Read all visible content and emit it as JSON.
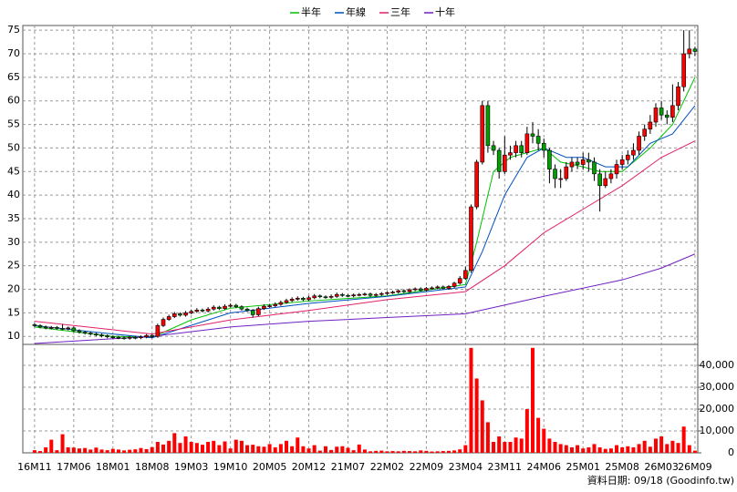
{
  "chart_data": {
    "type": "candlestick",
    "grid": true,
    "legend": "top",
    "up_color": "#ff0000",
    "down_color": "#00a000",
    "xlim": [
      -2.1,
      118.5
    ],
    "xticks": [
      {
        "value": 0,
        "label": "16M11"
      },
      {
        "value": 7,
        "label": "17M06"
      },
      {
        "value": 14,
        "label": "18M01"
      },
      {
        "value": 21,
        "label": "18M08"
      },
      {
        "value": 28,
        "label": "19M03"
      },
      {
        "value": 35,
        "label": "19M10"
      },
      {
        "value": 42,
        "label": "20M05"
      },
      {
        "value": 49,
        "label": "20M12"
      },
      {
        "value": 56,
        "label": "21M07"
      },
      {
        "value": 63,
        "label": "22M02"
      },
      {
        "value": 70,
        "label": "22M09"
      },
      {
        "value": 77,
        "label": "23M04"
      },
      {
        "value": 84,
        "label": "23M11"
      },
      {
        "value": 91,
        "label": "24M06"
      },
      {
        "value": 98,
        "label": "25M01"
      },
      {
        "value": 105,
        "label": "25M08"
      },
      {
        "value": 112,
        "label": "26M03"
      },
      {
        "value": 118,
        "label": "26M09"
      }
    ],
    "ylim": [
      8.3,
      76
    ],
    "yticks": [
      10,
      15,
      20,
      25,
      30,
      35,
      40,
      45,
      50,
      55,
      60,
      65,
      70,
      75
    ],
    "open": [
      12.5,
      12.3,
      12.0,
      11.8,
      11.9,
      11.7,
      11.6,
      11.8,
      11.2,
      10.9,
      10.7,
      10.5,
      10.3,
      10.1,
      9.9,
      9.8,
      9.7,
      9.6,
      9.8,
      9.7,
      9.9,
      10.2,
      10.0,
      12.3,
      13.6,
      14.2,
      14.8,
      14.5,
      15.0,
      15.3,
      15.6,
      15.4,
      15.8,
      16.2,
      15.9,
      16.4,
      16.6,
      16.3,
      15.8,
      15.5,
      14.6,
      15.9,
      16.4,
      16.5,
      16.8,
      17.2,
      17.6,
      17.9,
      18.1,
      17.8,
      18.2,
      18.6,
      18.4,
      18.3,
      18.5,
      18.9,
      18.7,
      18.6,
      18.8,
      18.9,
      19.0,
      18.7,
      18.9,
      19.1,
      19.3,
      19.4,
      19.7,
      19.5,
      19.9,
      20.1,
      19.8,
      20.2,
      20.3,
      20.5,
      20.2,
      20.6,
      21.3,
      22.3,
      24.0,
      37.5,
      47.0,
      59.0,
      50.5,
      49.5,
      45.0,
      48.5,
      49.0,
      50.5,
      49.0,
      53.0,
      52.5,
      51.0,
      49.5,
      45.5,
      43.5,
      43.5,
      46.0,
      47.0,
      46.5,
      47.5,
      47.0,
      44.5,
      42.0,
      43.5,
      44.5,
      46.5,
      47.5,
      48.5,
      49.5,
      52.5,
      54.0,
      55.5,
      58.5,
      57.0,
      56.5,
      59.0,
      63.0,
      70.0,
      71.0
    ],
    "high": [
      12.8,
      12.6,
      12.3,
      12.2,
      12.2,
      12.6,
      12.1,
      12.1,
      11.5,
      11.2,
      11.0,
      10.8,
      10.6,
      10.4,
      10.2,
      10.1,
      10.0,
      10.1,
      10.1,
      10.2,
      10.5,
      10.5,
      12.7,
      14.0,
      14.6,
      15.2,
      15.1,
      15.4,
      15.7,
      16.0,
      15.9,
      16.2,
      16.6,
      16.5,
      16.8,
      17.0,
      16.9,
      16.6,
      16.1,
      15.8,
      16.3,
      16.8,
      16.9,
      17.2,
      17.6,
      18.0,
      18.3,
      18.5,
      18.4,
      18.6,
      19.0,
      18.9,
      18.7,
      18.9,
      19.3,
      19.2,
      19.0,
      19.1,
      19.2,
      19.3,
      19.3,
      19.2,
      19.4,
      19.6,
      19.7,
      20.0,
      20.0,
      20.2,
      20.4,
      20.4,
      20.5,
      20.6,
      20.8,
      20.8,
      20.9,
      21.6,
      22.8,
      24.8,
      38.0,
      47.5,
      60.0,
      60.0,
      51.5,
      50.0,
      52.5,
      50.5,
      51.5,
      51.5,
      54.5,
      55.5,
      54.0,
      52.0,
      50.0,
      46.5,
      45.5,
      47.0,
      48.0,
      48.0,
      49.0,
      49.0,
      48.0,
      45.5,
      45.0,
      45.5,
      47.5,
      48.5,
      49.5,
      51.0,
      53.5,
      55.0,
      57.0,
      59.5,
      60.0,
      58.0,
      63.5,
      64.0,
      75.0,
      75.0,
      71.5
    ],
    "low": [
      12.0,
      11.7,
      11.5,
      11.5,
      11.4,
      11.3,
      11.3,
      10.9,
      10.6,
      10.4,
      10.2,
      10.0,
      9.8,
      9.6,
      9.5,
      9.4,
      9.3,
      9.3,
      9.4,
      9.4,
      9.6,
      9.6,
      9.7,
      12.0,
      13.3,
      13.9,
      14.2,
      14.2,
      14.7,
      15.0,
      15.1,
      15.1,
      15.5,
      15.6,
      15.6,
      16.1,
      16.0,
      15.5,
      15.2,
      14.0,
      14.3,
      15.6,
      16.1,
      16.2,
      16.5,
      16.9,
      17.3,
      17.6,
      17.5,
      17.5,
      17.9,
      18.1,
      18.0,
      18.0,
      18.2,
      18.4,
      18.3,
      18.3,
      18.5,
      18.6,
      18.4,
      18.4,
      18.6,
      18.8,
      19.0,
      19.1,
      19.2,
      19.2,
      19.6,
      19.5,
      19.5,
      19.9,
      20.0,
      19.9,
      19.9,
      20.3,
      21.0,
      22.0,
      23.5,
      37.0,
      46.5,
      49.0,
      48.5,
      43.5,
      44.5,
      47.5,
      48.0,
      48.0,
      48.5,
      51.0,
      49.5,
      48.0,
      42.5,
      41.5,
      41.5,
      43.0,
      45.0,
      45.5,
      45.5,
      45.0,
      43.0,
      36.5,
      41.5,
      42.5,
      43.5,
      45.5,
      46.5,
      47.5,
      48.5,
      51.5,
      53.0,
      54.5,
      56.0,
      55.0,
      55.5,
      58.0,
      62.0,
      69.0,
      69.5
    ],
    "close": [
      12.3,
      12.0,
      11.8,
      11.9,
      11.7,
      11.6,
      11.8,
      11.2,
      10.9,
      10.7,
      10.5,
      10.3,
      10.1,
      9.9,
      9.8,
      9.7,
      9.6,
      9.8,
      9.7,
      9.9,
      10.2,
      10.0,
      12.3,
      13.6,
      14.2,
      14.8,
      14.5,
      15.0,
      15.3,
      15.6,
      15.4,
      15.8,
      16.2,
      15.9,
      16.4,
      16.6,
      16.3,
      15.8,
      15.5,
      14.6,
      15.9,
      16.4,
      16.5,
      16.8,
      17.2,
      17.6,
      17.9,
      18.1,
      17.8,
      18.2,
      18.6,
      18.4,
      18.3,
      18.5,
      18.9,
      18.7,
      18.6,
      18.8,
      18.9,
      19.0,
      18.7,
      18.9,
      19.1,
      19.3,
      19.4,
      19.7,
      19.5,
      19.9,
      20.1,
      19.8,
      20.2,
      20.3,
      20.5,
      20.2,
      20.6,
      21.3,
      22.3,
      24.0,
      37.5,
      47.0,
      59.0,
      50.5,
      49.5,
      45.0,
      48.5,
      49.0,
      50.5,
      49.0,
      53.0,
      52.5,
      51.0,
      49.5,
      45.5,
      43.5,
      43.5,
      46.0,
      47.0,
      46.5,
      47.5,
      47.0,
      44.5,
      42.0,
      43.5,
      44.5,
      46.5,
      47.5,
      48.5,
      49.5,
      52.5,
      54.0,
      55.5,
      58.5,
      57.0,
      56.5,
      59.0,
      63.0,
      70.0,
      71.0,
      70.5
    ],
    "series": [
      {
        "name": "半年",
        "color": "#00c000",
        "x": [
          0,
          14,
          21,
          28,
          35,
          49,
          63,
          77,
          79,
          82,
          85,
          91,
          94,
          98,
          101,
          105,
          110,
          114,
          118
        ],
        "values": [
          12.0,
          10.0,
          9.8,
          13.5,
          16.0,
          17.5,
          18.6,
          21.0,
          30.0,
          45.0,
          48.0,
          50.0,
          47.0,
          46.0,
          45.0,
          45.0,
          50.0,
          55.0,
          65.0
        ]
      },
      {
        "name": "年線",
        "color": "#0050c0",
        "x": [
          0,
          14,
          21,
          35,
          49,
          63,
          77,
          80,
          84,
          88,
          91,
          95,
          98,
          102,
          106,
          110,
          114,
          118
        ],
        "values": [
          12.3,
          10.5,
          9.7,
          15.0,
          17.0,
          18.5,
          20.5,
          28.0,
          40.0,
          48.0,
          50.0,
          48.0,
          48.0,
          46.0,
          46.0,
          51.0,
          53.0,
          59.0
        ]
      },
      {
        "name": "三年",
        "color": "#e0206a",
        "x": [
          0,
          21,
          35,
          49,
          63,
          77,
          84,
          91,
          98,
          105,
          112,
          118
        ],
        "values": [
          13.2,
          10.5,
          13.5,
          15.5,
          17.8,
          19.5,
          25.0,
          32.0,
          37.0,
          42.0,
          48.0,
          51.5
        ]
      },
      {
        "name": "十年",
        "color": "#7020c0",
        "x": [
          0,
          21,
          35,
          49,
          63,
          77,
          91,
          105,
          112,
          118
        ],
        "values": [
          8.5,
          10.0,
          12.0,
          13.2,
          14.0,
          14.8,
          18.5,
          22.0,
          24.5,
          27.5
        ]
      }
    ],
    "volume": {
      "type": "bar",
      "color": "#ff0000",
      "ylim": [
        0,
        49600
      ],
      "yticks": [
        0,
        {
          "value": 10000,
          "label": "10,000"
        },
        {
          "value": 20000,
          "label": "20,000"
        },
        {
          "value": 30000,
          "label": "30,000"
        },
        {
          "value": 40000,
          "label": "40,000"
        }
      ],
      "values": [
        1200,
        800,
        2500,
        6000,
        1200,
        8500,
        2500,
        2400,
        2000,
        2200,
        1500,
        2400,
        1500,
        1200,
        1800,
        1500,
        1100,
        1400,
        1600,
        2200,
        1700,
        2600,
        5000,
        3800,
        5500,
        9000,
        4500,
        7500,
        5000,
        4500,
        3700,
        5000,
        5500,
        3500,
        5200,
        2000,
        6000,
        5500,
        3500,
        3700,
        3000,
        2800,
        4000,
        2500,
        4000,
        5500,
        3000,
        7000,
        3000,
        2000,
        3500,
        1000,
        3000,
        1300,
        2800,
        3000,
        2300,
        1200,
        3800,
        1500,
        700,
        900,
        1000,
        700,
        800,
        700,
        900,
        800,
        700,
        1100,
        900,
        600,
        700,
        800,
        900,
        1100,
        1600,
        3500,
        48000,
        34000,
        24000,
        14000,
        5000,
        7500,
        5000,
        5000,
        7000,
        6500,
        20000,
        48000,
        16000,
        11000,
        6500,
        5000,
        4000,
        3500,
        2500,
        3500,
        2000,
        2500,
        4000,
        2500,
        1800,
        2000,
        3500,
        2500,
        3000,
        2500,
        4000,
        5500,
        2800,
        6500,
        7500,
        4000,
        5500,
        4500,
        12000,
        3500,
        1000
      ]
    },
    "footnote": "資料日期: 09/18 (Goodinfo.tw)"
  }
}
